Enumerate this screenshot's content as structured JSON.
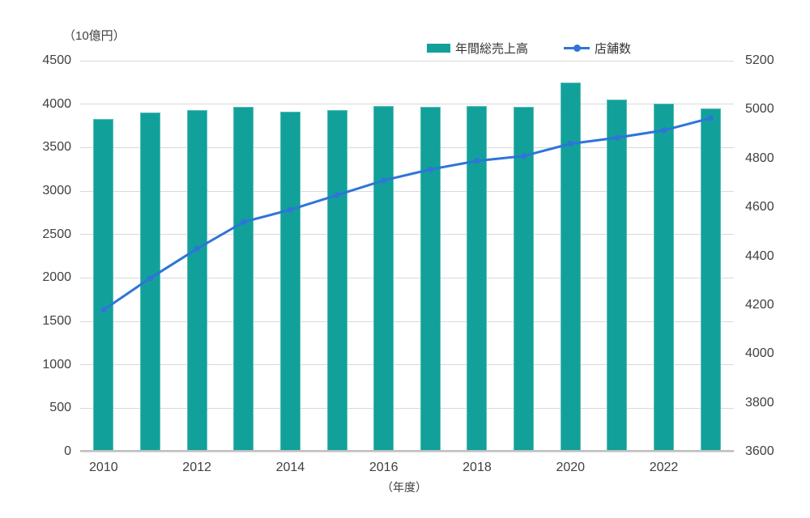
{
  "unit_label_left": "（10億円）",
  "xaxis_unit_label": "（年度）",
  "legend": {
    "sales_label": "年間総売上高",
    "stores_label": "店舗数"
  },
  "colors": {
    "bar": "#12A19A",
    "bar_border": "#57BDB6",
    "line": "#2E75D8",
    "grid": "#D9D9D9",
    "axis": "#BFBFBF",
    "text": "#404040"
  },
  "chart_data": {
    "type": "combo-bar-line",
    "categories": [
      "2010",
      "2011",
      "2012",
      "2013",
      "2014",
      "2015",
      "2016",
      "2017",
      "2018",
      "2019",
      "2020",
      "2021",
      "2022",
      "2023"
    ],
    "series": [
      {
        "name": "年間総売上高",
        "type": "bar",
        "axis": "left",
        "values": [
          3825,
          3905,
          3935,
          3970,
          3910,
          3935,
          3975,
          3970,
          3975,
          3965,
          4250,
          4055,
          4005,
          3955
        ]
      },
      {
        "name": "店舗数",
        "type": "line",
        "axis": "right",
        "values": [
          4180,
          4310,
          4430,
          4540,
          4590,
          4650,
          4710,
          4755,
          4790,
          4810,
          4860,
          4885,
          4915,
          4965
        ]
      }
    ],
    "left_axis": {
      "label": "（10億円）",
      "min": 0,
      "max": 4500,
      "step": 500,
      "ticks": [
        "4500",
        "4000",
        "3500",
        "3000",
        "2500",
        "2000",
        "1500",
        "1000",
        "500",
        "0"
      ]
    },
    "right_axis": {
      "label": "店舗数",
      "min": 3600,
      "max": 5200,
      "step": 200,
      "ticks": [
        "5200",
        "5000",
        "4800",
        "4600",
        "4400",
        "4200",
        "4000",
        "3800",
        "3600"
      ]
    },
    "x_axis": {
      "label": "（年度）",
      "tick_labels": [
        "2010",
        "2012",
        "2014",
        "2016",
        "2018",
        "2020",
        "2022"
      ]
    },
    "grid": true,
    "legend_position": "top"
  }
}
